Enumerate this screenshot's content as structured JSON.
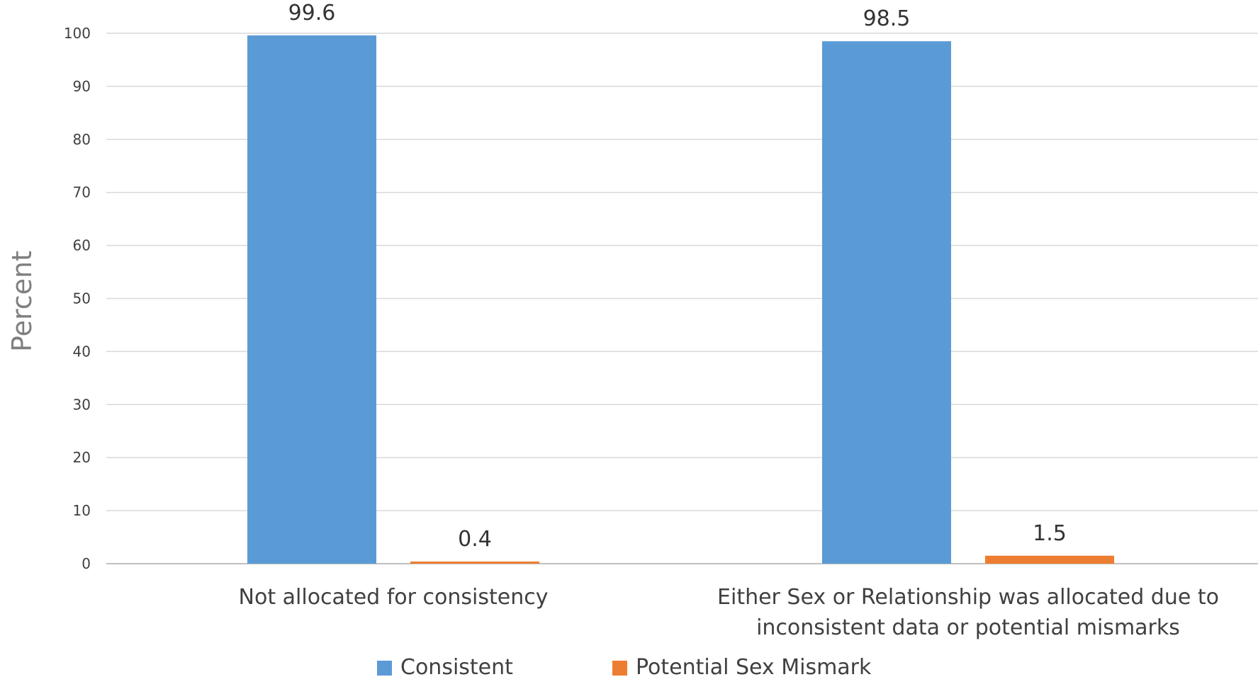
{
  "chart_data": {
    "type": "bar",
    "title": "",
    "xlabel": "",
    "ylabel": "Percent",
    "ylim": [
      0,
      100
    ],
    "yticks": [
      0,
      10,
      20,
      30,
      40,
      50,
      60,
      70,
      80,
      90,
      100
    ],
    "grid": true,
    "legend_position": "bottom",
    "categories": [
      [
        "Not allocated for consistency"
      ],
      [
        "Either Sex or Relationship was allocated due to",
        "inconsistent data or potential mismarks"
      ]
    ],
    "series": [
      {
        "name": "Consistent",
        "color": "#5b9bd5",
        "values": [
          99.6,
          98.5
        ],
        "labels": [
          "99.6",
          "98.5"
        ]
      },
      {
        "name": "Potential Sex Mismark",
        "color": "#ed7d31",
        "values": [
          0.4,
          1.5
        ],
        "labels": [
          "0.4",
          "1.5"
        ]
      }
    ]
  }
}
